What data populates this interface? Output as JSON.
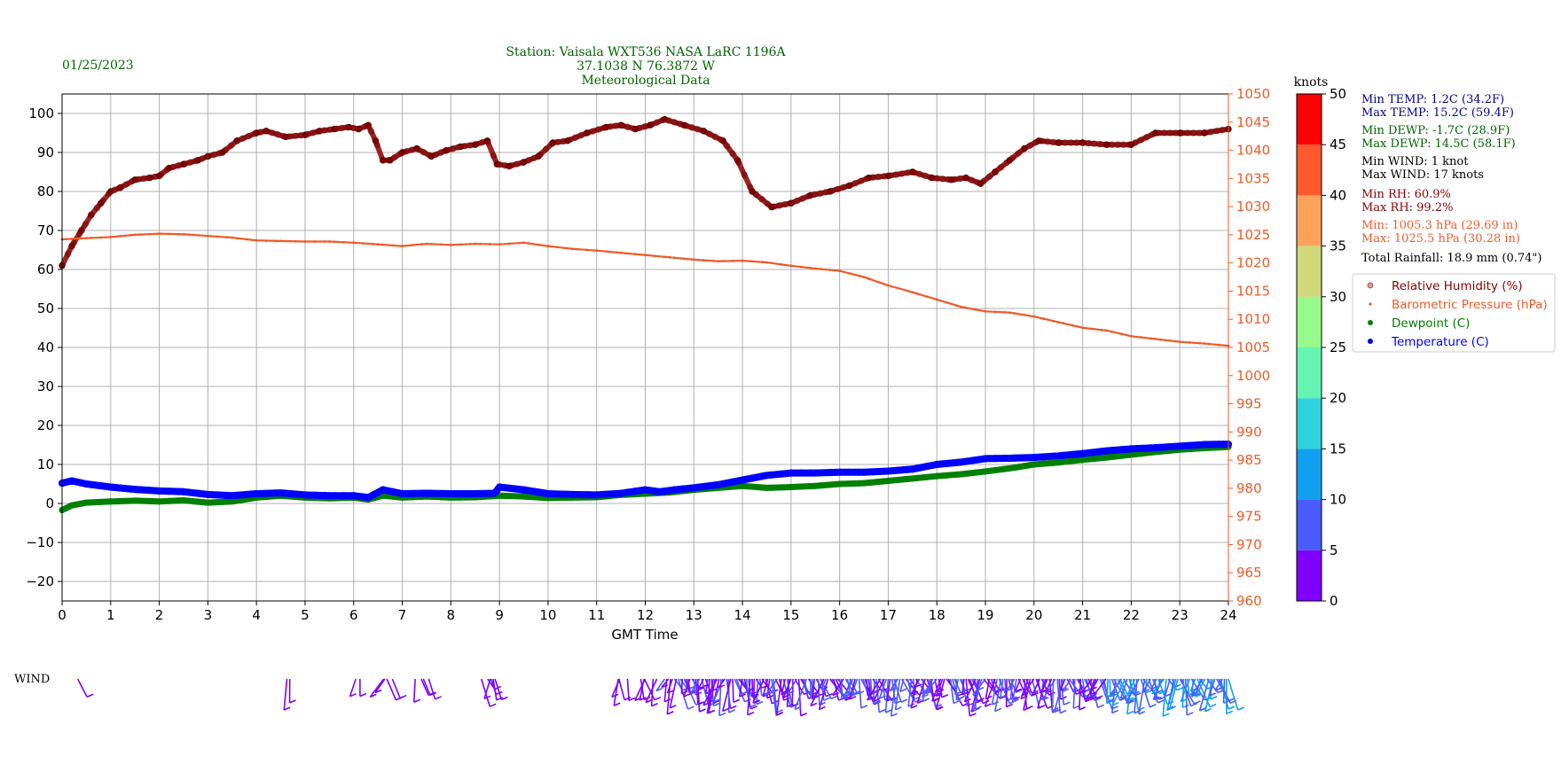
{
  "header": {
    "date": "01/25/2023",
    "station": "Station:  Vaisala WXT536  NASA LaRC 1196A",
    "coords": "37.1038 N 76.3872 W",
    "subtitle": "Meteorological Data"
  },
  "colorbar": {
    "label": "knots",
    "ticks": [
      "0",
      "5",
      "10",
      "15",
      "20",
      "25",
      "30",
      "35",
      "40",
      "45",
      "50"
    ],
    "colors": [
      "#7f00ff",
      "#4a5bff",
      "#129ff0",
      "#2fd3dc",
      "#64f5b3",
      "#98fa8c",
      "#cfd97a",
      "#fba35b",
      "#ff5a2f",
      "#ff0000"
    ]
  },
  "stats": [
    {
      "text": "Min TEMP: 1.2C (34.2F)",
      "color": "#00008b"
    },
    {
      "text": "Max TEMP: 15.2C (59.4F)",
      "color": "#00008b"
    },
    {
      "text": "Min DEWP: -1.7C (28.9F)",
      "color": "#006400"
    },
    {
      "text": "Max DEWP: 14.5C (58.1F)",
      "color": "#006400"
    },
    {
      "text": "Min WIND: 1 knot",
      "color": "#000000"
    },
    {
      "text": "Max WIND: 17 knots",
      "color": "#000000"
    },
    {
      "text": "Min RH: 60.9%",
      "color": "#8b0000"
    },
    {
      "text": "Max RH: 99.2%",
      "color": "#8b0000"
    },
    {
      "text": "Min: 1005.3 hPa (29.69 in)",
      "color": "#f05a28"
    },
    {
      "text": "Max: 1025.5 hPa (30.28 in)",
      "color": "#f05a28"
    },
    {
      "text": "Total Rainfall: 18.9 mm (0.74\")",
      "color": "#000000"
    }
  ],
  "legend": [
    {
      "label": "Relative Humidity (%)",
      "color": "#8b0000",
      "marker": "ring"
    },
    {
      "label": "Barometric Pressure (hPa)",
      "color": "#f05a28",
      "marker": "small"
    },
    {
      "label": "Dewpoint (C)",
      "color": "#008000",
      "marker": "dot"
    },
    {
      "label": "Temperature (C)",
      "color": "#0000ff",
      "marker": "dot"
    }
  ],
  "wind_label": "WIND",
  "colors": {
    "rh": "#8b0000",
    "pressure": "#f05a28",
    "dewpoint": "#008000",
    "temperature": "#0000ff",
    "grid": "#b0b0b0"
  },
  "chart_data": {
    "type": "scatter",
    "xlabel": "GMT Time",
    "x_ticks": [
      "0",
      "1",
      "2",
      "3",
      "4",
      "5",
      "6",
      "7",
      "8",
      "9",
      "10",
      "11",
      "12",
      "13",
      "14",
      "15",
      "16",
      "17",
      "18",
      "19",
      "20",
      "21",
      "22",
      "23",
      "24"
    ],
    "xlim": [
      0,
      24
    ],
    "ylim": [
      -25,
      105
    ],
    "y_ticks": [
      "−20",
      "−10",
      "0",
      "10",
      "20",
      "30",
      "40",
      "50",
      "60",
      "70",
      "80",
      "90",
      "100"
    ],
    "y2lim": [
      960,
      1050
    ],
    "y2_ticks": [
      "960",
      "965",
      "970",
      "975",
      "980",
      "985",
      "990",
      "995",
      "1000",
      "1005",
      "1010",
      "1015",
      "1020",
      "1025",
      "1030",
      "1035",
      "1040",
      "1045",
      "1050"
    ],
    "grid": true,
    "series": [
      {
        "name": "Relative Humidity (%)",
        "axis": "left",
        "x": [
          0,
          0.2,
          0.4,
          0.6,
          0.8,
          1,
          1.2,
          1.5,
          1.8,
          2,
          2.2,
          2.5,
          2.8,
          3,
          3.3,
          3.6,
          4,
          4.2,
          4.6,
          5,
          5.3,
          5.6,
          5.9,
          6.1,
          6.3,
          6.45,
          6.6,
          6.75,
          7,
          7.3,
          7.6,
          7.9,
          8.2,
          8.5,
          8.75,
          8.95,
          9.2,
          9.5,
          9.8,
          10.1,
          10.4,
          10.8,
          11.2,
          11.5,
          11.8,
          12.1,
          12.4,
          12.8,
          13.2,
          13.6,
          13.9,
          14.2,
          14.6,
          15,
          15.4,
          15.8,
          16.2,
          16.6,
          17,
          17.5,
          17.9,
          18.3,
          18.6,
          18.9,
          19.2,
          19.5,
          19.8,
          20.1,
          20.5,
          21,
          21.5,
          22,
          22.5,
          23,
          23.5,
          24
        ],
        "values": [
          61,
          66,
          70,
          74,
          77,
          80,
          81,
          83,
          83.5,
          84,
          86,
          87,
          88,
          89,
          90,
          93,
          95,
          95.5,
          94,
          94.5,
          95.5,
          96,
          96.5,
          96,
          97,
          93,
          88,
          88,
          90,
          91,
          89,
          90.5,
          91.5,
          92,
          93,
          87,
          86.5,
          87.5,
          89,
          92.5,
          93,
          95,
          96.5,
          97,
          96,
          97,
          98.5,
          97,
          95.5,
          93,
          88,
          80,
          76,
          77,
          79,
          80,
          81.5,
          83.5,
          84,
          85,
          83.5,
          83,
          83.5,
          82,
          85,
          88,
          91,
          93,
          92.5,
          92.5,
          92,
          92,
          95,
          95,
          95,
          96
        ]
      },
      {
        "name": "Barometric Pressure (hPa)",
        "axis": "right",
        "x": [
          0,
          0.5,
          1,
          1.5,
          2,
          2.5,
          3,
          3.5,
          4,
          4.5,
          5,
          5.5,
          6,
          6.5,
          7,
          7.5,
          8,
          8.5,
          9,
          9.5,
          10,
          10.5,
          11,
          11.5,
          12,
          12.5,
          13,
          13.5,
          14,
          14.5,
          15,
          15.5,
          16,
          16.5,
          17,
          17.5,
          18,
          18.5,
          19,
          19.5,
          20,
          20.5,
          21,
          21.5,
          22,
          22.5,
          23,
          23.5,
          24
        ],
        "values": [
          1024.2,
          1024.4,
          1024.6,
          1025.0,
          1025.2,
          1025.1,
          1024.8,
          1024.5,
          1024.0,
          1023.9,
          1023.8,
          1023.8,
          1023.6,
          1023.3,
          1023.0,
          1023.4,
          1023.2,
          1023.4,
          1023.3,
          1023.6,
          1023.0,
          1022.5,
          1022.2,
          1021.8,
          1021.4,
          1021.0,
          1020.6,
          1020.3,
          1020.4,
          1020.1,
          1019.5,
          1019.0,
          1018.6,
          1017.5,
          1016.0,
          1014.8,
          1013.5,
          1012.2,
          1011.4,
          1011.2,
          1010.5,
          1009.5,
          1008.5,
          1008.0,
          1007.0,
          1006.5,
          1006.0,
          1005.7,
          1005.3
        ]
      },
      {
        "name": "Dewpoint (C)",
        "axis": "left",
        "x": [
          0,
          0.2,
          0.5,
          1,
          1.5,
          2,
          2.5,
          3,
          3.5,
          4,
          4.5,
          5,
          5.5,
          6,
          6.3,
          6.6,
          7,
          7.5,
          8,
          8.5,
          9,
          9.5,
          10,
          10.5,
          11,
          11.5,
          12,
          12.5,
          13,
          13.5,
          14,
          14.5,
          15,
          15.5,
          16,
          16.5,
          17,
          17.5,
          18,
          18.5,
          19,
          19.5,
          20,
          20.5,
          21,
          21.5,
          22,
          22.5,
          23,
          23.5,
          24
        ],
        "values": [
          -1.7,
          -0.5,
          0.2,
          0.5,
          0.7,
          0.5,
          0.8,
          0.2,
          0.5,
          1.5,
          2,
          1.5,
          1.3,
          1.5,
          1,
          2,
          1.5,
          1.8,
          1.5,
          1.6,
          2,
          1.8,
          1.4,
          1.5,
          1.6,
          2.2,
          2.5,
          2.8,
          3.5,
          4,
          4.5,
          4,
          4.2,
          4.5,
          5,
          5.2,
          5.8,
          6.4,
          7,
          7.5,
          8.2,
          9,
          10,
          10.5,
          11.2,
          11.8,
          12.5,
          13.2,
          13.8,
          14.2,
          14.5
        ]
      },
      {
        "name": "Temperature (C)",
        "axis": "left",
        "x": [
          0,
          0.2,
          0.5,
          1,
          1.5,
          2,
          2.5,
          3,
          3.5,
          4,
          4.5,
          5,
          5.5,
          6,
          6.3,
          6.6,
          7,
          7.5,
          8,
          8.5,
          8.9,
          9,
          9.5,
          10,
          10.5,
          11,
          11.5,
          12,
          12.3,
          12.6,
          13,
          13.5,
          14,
          14.5,
          15,
          15.5,
          16,
          16.5,
          17,
          17.5,
          18,
          18.5,
          19,
          19.5,
          20,
          20.5,
          21,
          21.5,
          22,
          22.5,
          23,
          23.5,
          24
        ],
        "values": [
          5.2,
          5.8,
          5,
          4.2,
          3.6,
          3.2,
          3,
          2.3,
          2,
          2.5,
          2.7,
          2.2,
          2,
          2,
          1.5,
          3.5,
          2.5,
          2.6,
          2.5,
          2.5,
          2.6,
          4.2,
          3.5,
          2.5,
          2.3,
          2.2,
          2.6,
          3.5,
          3,
          3.5,
          4,
          4.8,
          6,
          7.2,
          7.8,
          7.8,
          8,
          8,
          8.3,
          8.8,
          10,
          10.6,
          11.5,
          11.6,
          11.8,
          12.2,
          12.8,
          13.5,
          14,
          14.3,
          14.7,
          15.1,
          15.2
        ]
      }
    ]
  }
}
